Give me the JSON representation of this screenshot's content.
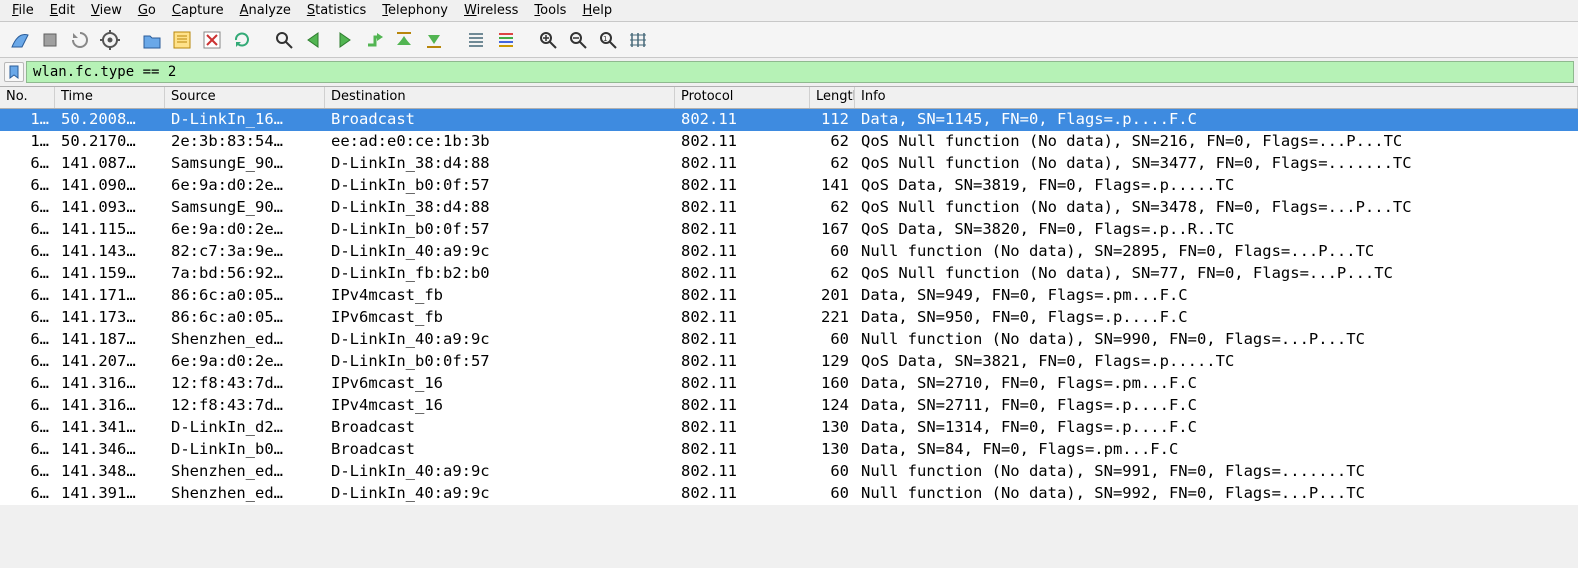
{
  "menu": [
    "File",
    "Edit",
    "View",
    "Go",
    "Capture",
    "Analyze",
    "Statistics",
    "Telephony",
    "Wireless",
    "Tools",
    "Help"
  ],
  "filter": {
    "value": "wlan.fc.type == 2",
    "bg": "#b6f2b6"
  },
  "columns": [
    "No.",
    "Time",
    "Source",
    "Destination",
    "Protocol",
    "Length",
    "Info"
  ],
  "colors": {
    "selected_bg": "#3e8be0",
    "selected_fg": "#ffffff",
    "row_bg": "#ffffff"
  },
  "selected_index": 0,
  "rows": [
    {
      "no": "1…",
      "time": "50.2008…",
      "src": "D-LinkIn_16…",
      "dst": "Broadcast",
      "proto": "802.11",
      "len": "112",
      "info": "Data, SN=1145, FN=0, Flags=.p....F.C"
    },
    {
      "no": "1…",
      "time": "50.2170…",
      "src": "2e:3b:83:54…",
      "dst": "ee:ad:e0:ce:1b:3b",
      "proto": "802.11",
      "len": "62",
      "info": "QoS Null function (No data), SN=216, FN=0, Flags=...P...TC"
    },
    {
      "no": "6…",
      "time": "141.087…",
      "src": "SamsungE_90…",
      "dst": "D-LinkIn_38:d4:88",
      "proto": "802.11",
      "len": "62",
      "info": "QoS Null function (No data), SN=3477, FN=0, Flags=.......TC"
    },
    {
      "no": "6…",
      "time": "141.090…",
      "src": "6e:9a:d0:2e…",
      "dst": "D-LinkIn_b0:0f:57",
      "proto": "802.11",
      "len": "141",
      "info": "QoS Data, SN=3819, FN=0, Flags=.p.....TC"
    },
    {
      "no": "6…",
      "time": "141.093…",
      "src": "SamsungE_90…",
      "dst": "D-LinkIn_38:d4:88",
      "proto": "802.11",
      "len": "62",
      "info": "QoS Null function (No data), SN=3478, FN=0, Flags=...P...TC"
    },
    {
      "no": "6…",
      "time": "141.115…",
      "src": "6e:9a:d0:2e…",
      "dst": "D-LinkIn_b0:0f:57",
      "proto": "802.11",
      "len": "167",
      "info": "QoS Data, SN=3820, FN=0, Flags=.p..R..TC"
    },
    {
      "no": "6…",
      "time": "141.143…",
      "src": "82:c7:3a:9e…",
      "dst": "D-LinkIn_40:a9:9c",
      "proto": "802.11",
      "len": "60",
      "info": "Null function (No data), SN=2895, FN=0, Flags=...P...TC"
    },
    {
      "no": "6…",
      "time": "141.159…",
      "src": "7a:bd:56:92…",
      "dst": "D-LinkIn_fb:b2:b0",
      "proto": "802.11",
      "len": "62",
      "info": "QoS Null function (No data), SN=77, FN=0, Flags=...P...TC"
    },
    {
      "no": "6…",
      "time": "141.171…",
      "src": "86:6c:a0:05…",
      "dst": "IPv4mcast_fb",
      "proto": "802.11",
      "len": "201",
      "info": "Data, SN=949, FN=0, Flags=.pm...F.C"
    },
    {
      "no": "6…",
      "time": "141.173…",
      "src": "86:6c:a0:05…",
      "dst": "IPv6mcast_fb",
      "proto": "802.11",
      "len": "221",
      "info": "Data, SN=950, FN=0, Flags=.p....F.C"
    },
    {
      "no": "6…",
      "time": "141.187…",
      "src": "Shenzhen_ed…",
      "dst": "D-LinkIn_40:a9:9c",
      "proto": "802.11",
      "len": "60",
      "info": "Null function (No data), SN=990, FN=0, Flags=...P...TC"
    },
    {
      "no": "6…",
      "time": "141.207…",
      "src": "6e:9a:d0:2e…",
      "dst": "D-LinkIn_b0:0f:57",
      "proto": "802.11",
      "len": "129",
      "info": "QoS Data, SN=3821, FN=0, Flags=.p.....TC"
    },
    {
      "no": "6…",
      "time": "141.316…",
      "src": "12:f8:43:7d…",
      "dst": "IPv6mcast_16",
      "proto": "802.11",
      "len": "160",
      "info": "Data, SN=2710, FN=0, Flags=.pm...F.C"
    },
    {
      "no": "6…",
      "time": "141.316…",
      "src": "12:f8:43:7d…",
      "dst": "IPv4mcast_16",
      "proto": "802.11",
      "len": "124",
      "info": "Data, SN=2711, FN=0, Flags=.p....F.C"
    },
    {
      "no": "6…",
      "time": "141.341…",
      "src": "D-LinkIn_d2…",
      "dst": "Broadcast",
      "proto": "802.11",
      "len": "130",
      "info": "Data, SN=1314, FN=0, Flags=.p....F.C"
    },
    {
      "no": "6…",
      "time": "141.346…",
      "src": "D-LinkIn_b0…",
      "dst": "Broadcast",
      "proto": "802.11",
      "len": "130",
      "info": "Data, SN=84, FN=0, Flags=.pm...F.C"
    },
    {
      "no": "6…",
      "time": "141.348…",
      "src": "Shenzhen_ed…",
      "dst": "D-LinkIn_40:a9:9c",
      "proto": "802.11",
      "len": "60",
      "info": "Null function (No data), SN=991, FN=0, Flags=.......TC"
    },
    {
      "no": "6…",
      "time": "141.391…",
      "src": "Shenzhen_ed…",
      "dst": "D-LinkIn_40:a9:9c",
      "proto": "802.11",
      "len": "60",
      "info": "Null function (No data), SN=992, FN=0, Flags=...P...TC"
    }
  ],
  "toolbar_icons": [
    "shark-fin-icon",
    "stop-icon",
    "restart-icon",
    "options-icon",
    "open-icon",
    "save-icon",
    "close-file-icon",
    "reload-icon",
    "find-icon",
    "back-icon",
    "forward-icon",
    "jump-icon",
    "go-first-icon",
    "go-last-icon",
    "autoscroll-icon",
    "colorize-icon",
    "zoom-in-icon",
    "zoom-out-icon",
    "zoom-reset-icon",
    "resize-cols-icon"
  ]
}
